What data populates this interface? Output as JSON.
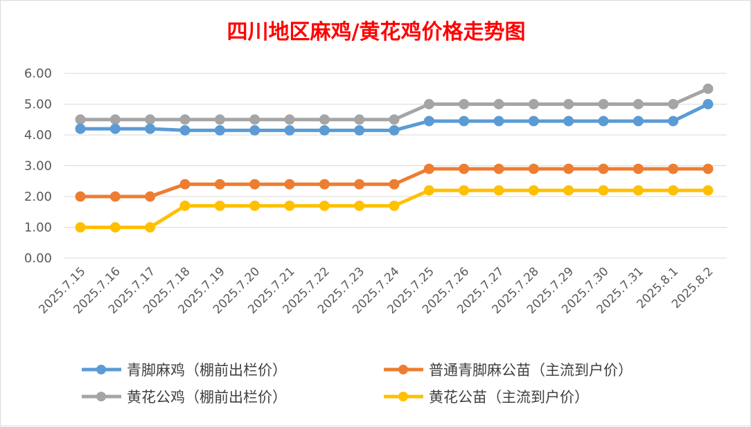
{
  "chart_data": {
    "type": "line",
    "title": "四川地区麻鸡/黄花鸡价格走势图",
    "xlabel": "",
    "ylabel": "",
    "ylim": [
      0,
      6
    ],
    "yticks": [
      "0.00",
      "1.00",
      "2.00",
      "3.00",
      "4.00",
      "5.00",
      "6.00"
    ],
    "grid": true,
    "legend_position": "bottom",
    "categories": [
      "2025.7.15",
      "2025.7.16",
      "2025.7.17",
      "2025.7.18",
      "2025.7.19",
      "2025.7.20",
      "2025.7.21",
      "2025.7.22",
      "2025.7.23",
      "2025.7.24",
      "2025.7.25",
      "2025.7.26",
      "2025.7.27",
      "2025.7.28",
      "2025.7.29",
      "2025.7.30",
      "2025.7.31",
      "2025.8.1",
      "2025.8.2"
    ],
    "series": [
      {
        "name": "青脚麻鸡（棚前出栏价）",
        "color": "#5b9bd5",
        "values": [
          4.2,
          4.2,
          4.2,
          4.15,
          4.15,
          4.15,
          4.15,
          4.15,
          4.15,
          4.15,
          4.45,
          4.45,
          4.45,
          4.45,
          4.45,
          4.45,
          4.45,
          4.45,
          5.0
        ]
      },
      {
        "name": "普通青脚麻公苗（主流到户价）",
        "color": "#ed7d31",
        "values": [
          2.0,
          2.0,
          2.0,
          2.4,
          2.4,
          2.4,
          2.4,
          2.4,
          2.4,
          2.4,
          2.9,
          2.9,
          2.9,
          2.9,
          2.9,
          2.9,
          2.9,
          2.9,
          2.9
        ]
      },
      {
        "name": "黄花公鸡（棚前出栏价）",
        "color": "#a5a5a5",
        "values": [
          4.5,
          4.5,
          4.5,
          4.5,
          4.5,
          4.5,
          4.5,
          4.5,
          4.5,
          4.5,
          5.0,
          5.0,
          5.0,
          5.0,
          5.0,
          5.0,
          5.0,
          5.0,
          5.5
        ]
      },
      {
        "name": "黄花公苗（主流到户价）",
        "color": "#ffc000",
        "values": [
          1.0,
          1.0,
          1.0,
          1.7,
          1.7,
          1.7,
          1.7,
          1.7,
          1.7,
          1.7,
          2.2,
          2.2,
          2.2,
          2.2,
          2.2,
          2.2,
          2.2,
          2.2,
          2.2
        ]
      }
    ]
  }
}
